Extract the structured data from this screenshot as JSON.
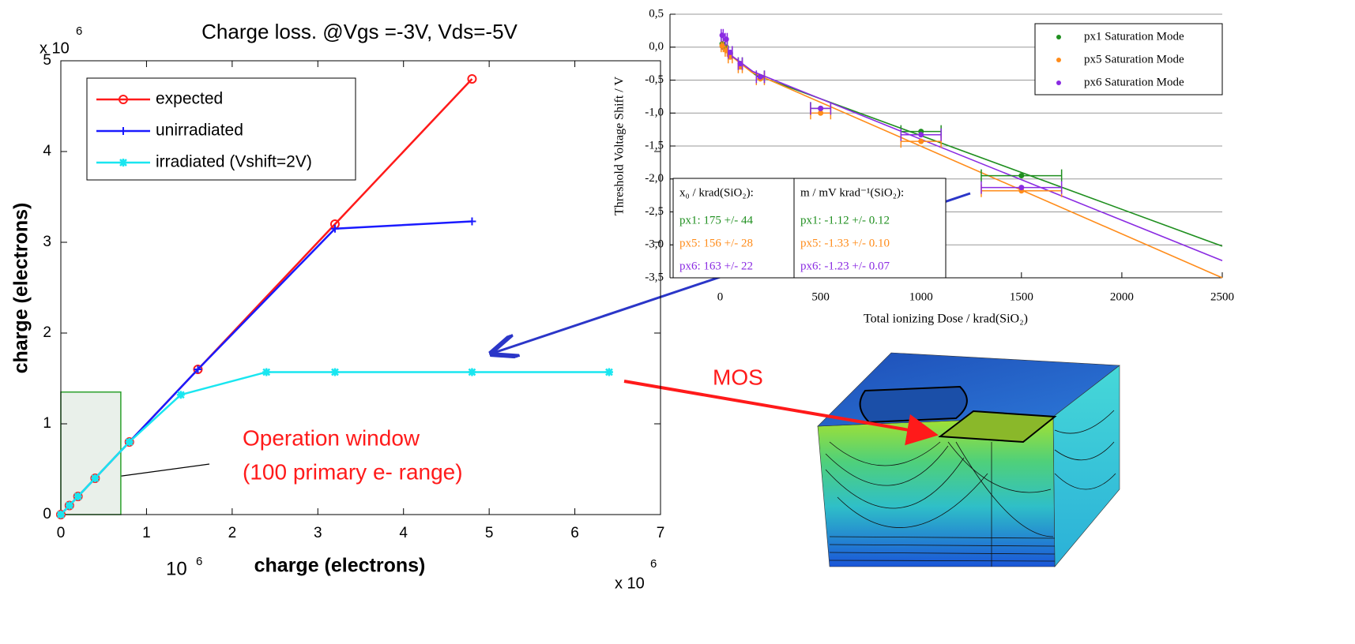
{
  "chart_data": [
    {
      "type": "line",
      "title": "Charge loss. @Vgs =-3V, Vds=-5V",
      "x_label": "charge (electrons)",
      "y_label": "charge (electrons)",
      "x_multiplier": {
        "base": "x 10",
        "exponent": "6"
      },
      "y_multiplier": {
        "base": "x 10",
        "exponent": "6"
      },
      "xlim": [
        0,
        7
      ],
      "xticks": [
        0,
        1,
        2,
        3,
        4,
        5,
        6,
        7
      ],
      "ylim": [
        0,
        5
      ],
      "yticks": [
        0,
        1,
        2,
        3,
        4,
        5
      ],
      "legend": "upper left",
      "series": [
        {
          "name": "expected",
          "color": "#ff1a1a",
          "marker": "o",
          "x": [
            0,
            0.1,
            0.2,
            0.4,
            0.8,
            1.6,
            3.2,
            4.8
          ],
          "values": [
            0,
            0.1,
            0.2,
            0.4,
            0.8,
            1.6,
            3.2,
            4.8
          ]
        },
        {
          "name": "unirradiated",
          "color": "#1a1aff",
          "marker": "+",
          "x": [
            0,
            0.1,
            0.2,
            0.4,
            0.8,
            1.6,
            3.2,
            4.8
          ],
          "values": [
            0,
            0.1,
            0.2,
            0.4,
            0.8,
            1.6,
            3.15,
            3.23
          ]
        },
        {
          "name": "irradiated (Vshift=2V)",
          "color": "#19e6f0",
          "marker": "*",
          "x": [
            0,
            0.1,
            0.2,
            0.4,
            0.8,
            1.4,
            2.4,
            3.2,
            4.8,
            6.4
          ],
          "values": [
            0,
            0.1,
            0.2,
            0.4,
            0.8,
            1.32,
            1.57,
            1.57,
            1.57,
            1.57
          ]
        }
      ],
      "window": {
        "x": [
          0,
          0.7
        ],
        "y": [
          0,
          1.35
        ]
      },
      "annotations": [
        "Operation window",
        "(100 primary e- range)"
      ]
    },
    {
      "type": "scatter",
      "x_label": "Total ionizing Dose / krad(SiO₂)",
      "y_label": "Threshold Voltage Shift / V",
      "xlim": [
        -250,
        2500
      ],
      "xticks": [
        0,
        500,
        1000,
        1500,
        2000,
        2500
      ],
      "ylim": [
        -3.5,
        0.5
      ],
      "yticks": [
        {
          "value": 0.5,
          "label": "0,5"
        },
        {
          "value": 0,
          "label": "0,0"
        },
        {
          "value": -0.5,
          "label": "-0,5"
        },
        {
          "value": -1,
          "label": "-1,0"
        },
        {
          "value": -1.5,
          "label": "-1,5"
        },
        {
          "value": -2,
          "label": "-2,0"
        },
        {
          "value": -2.5,
          "label": "-2,5"
        },
        {
          "value": -3,
          "label": "-3,0"
        },
        {
          "value": -3.5,
          "label": "-3,5"
        }
      ],
      "grid": true,
      "legend": "upper right",
      "series": [
        {
          "name": "px1 Saturation Mode",
          "color": "#1f8f1f",
          "x": [
            10,
            30,
            50,
            100,
            200,
            500,
            1000,
            1500
          ],
          "xerr": [
            5,
            5,
            10,
            10,
            20,
            50,
            100,
            200
          ],
          "values": [
            0.05,
            0.0,
            -0.1,
            -0.25,
            -0.45,
            -0.93,
            -1.28,
            -1.95
          ],
          "fit_x": [
            0,
            175,
            2500
          ],
          "fit_values": [
            0,
            -0.42,
            -3.02
          ]
        },
        {
          "name": "px5 Saturation Mode",
          "color": "#ff8c1a",
          "x": [
            10,
            30,
            50,
            100,
            200,
            500,
            1000,
            1500
          ],
          "xerr": [
            5,
            5,
            10,
            10,
            20,
            50,
            100,
            200
          ],
          "values": [
            0.02,
            -0.05,
            -0.15,
            -0.3,
            -0.48,
            -1.0,
            -1.43,
            -2.18
          ],
          "fit_x": [
            0,
            156,
            2500
          ],
          "fit_values": [
            0,
            -0.38,
            -3.5
          ]
        },
        {
          "name": "px6 Saturation Mode",
          "color": "#8a2be2",
          "x": [
            10,
            30,
            50,
            100,
            200,
            500,
            1000,
            1500
          ],
          "xerr": [
            5,
            5,
            10,
            10,
            20,
            50,
            100,
            200
          ],
          "values": [
            0.18,
            0.12,
            -0.08,
            -0.25,
            -0.45,
            -0.93,
            -1.33,
            -2.13
          ],
          "fit_x": [
            0,
            163,
            2500
          ],
          "fit_values": [
            0,
            -0.37,
            -3.24
          ]
        }
      ],
      "fit_table": {
        "headers": [
          "x₀ / krad(SiO₂):",
          "m / mV krad⁻¹(SiO₂):"
        ],
        "rows": [
          [
            "px1: 175 +/- 44",
            "px1: -1.12 +/- 0.12"
          ],
          [
            "px5: 156 +/- 28",
            "px5: -1.33 +/- 0.10"
          ],
          [
            "px6: 163 +/- 22",
            "px6: -1.23 +/- 0.07"
          ]
        ]
      }
    }
  ],
  "annotations": {
    "mos": "MOS",
    "scale_note": {
      "base": "10",
      "exponent": "6"
    }
  }
}
